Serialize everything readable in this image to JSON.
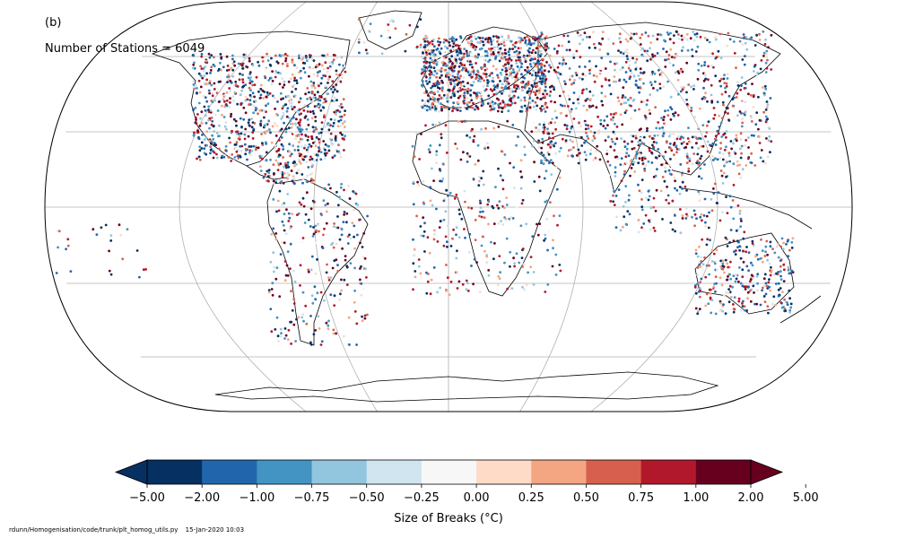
{
  "panel_label": "(b)",
  "stations_text": "Number of Stations = 6049",
  "colorbar": {
    "title": "Size of Breaks (°C)",
    "ticks": [
      "−5.00",
      "−2.00",
      "−1.00",
      "−0.75",
      "−0.50",
      "−0.25",
      "0.00",
      "0.25",
      "0.50",
      "0.75",
      "1.00",
      "2.00",
      "5.00"
    ],
    "colors": [
      "#053061",
      "#2166ac",
      "#4393c3",
      "#92c5de",
      "#d1e5f0",
      "#f7f7f7",
      "#fddbc7",
      "#f4a582",
      "#d6604d",
      "#b2182b",
      "#67001f"
    ],
    "extend_low_color": "#053061",
    "extend_high_color": "#67001f"
  },
  "footer": {
    "path": "rdunn/Homogenisation/code/trunk/plt_homog_utils.py",
    "date": "15-Jan-2020 10:03"
  }
}
